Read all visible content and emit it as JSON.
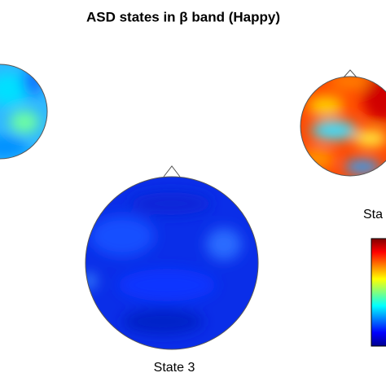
{
  "title": "ASD states in β band (Happy)",
  "maps": [
    {
      "label": "State 3"
    },
    {
      "label": "Sta"
    }
  ]
}
